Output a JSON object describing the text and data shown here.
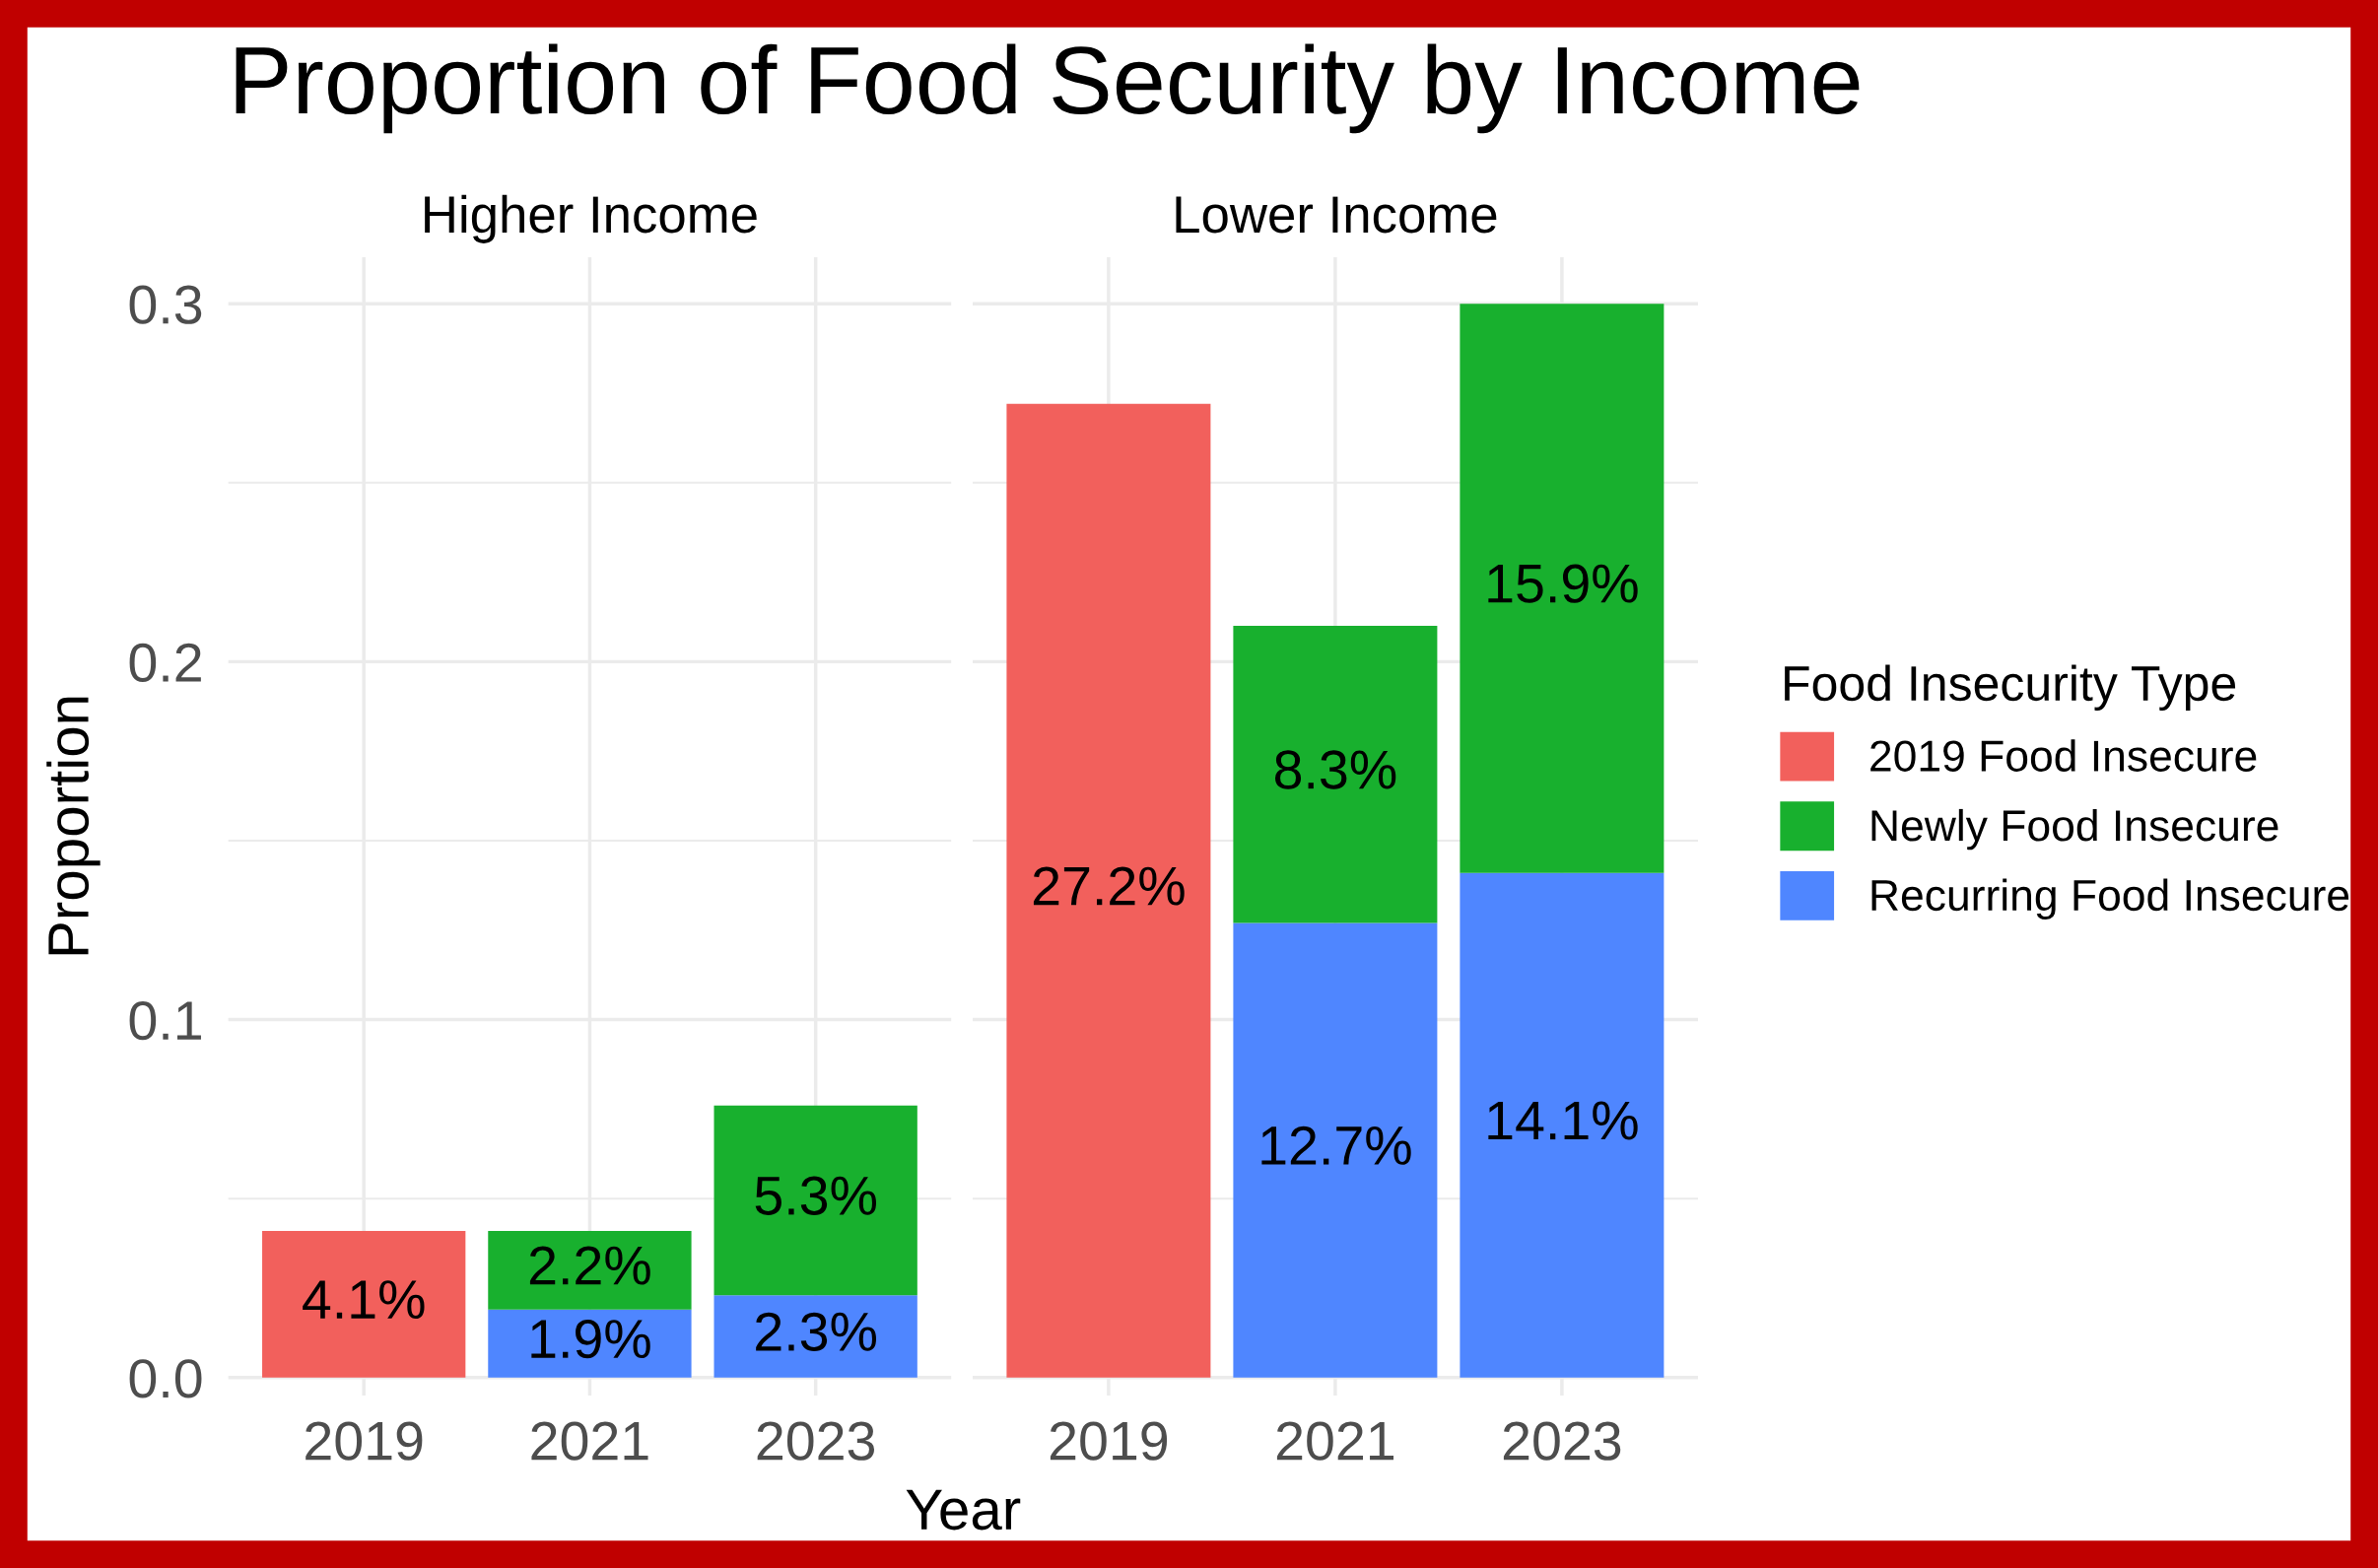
{
  "chart_data": [
    {
      "type": "bar",
      "title": "Proportion of Food Security by Income",
      "subtitle": "Higher Income",
      "xlabel": "Year",
      "ylabel": "Proportion",
      "categories": [
        "2019",
        "2021",
        "2023"
      ],
      "stacked": true,
      "ylim": [
        -0.005,
        0.313
      ],
      "yticks": [
        {
          "value": 0,
          "label": "0.0"
        },
        0.1,
        0.2,
        0.3
      ],
      "grid": true,
      "series": [
        {
          "color": "#4f86ff",
          "values": [
            null,
            0.019,
            0.023
          ],
          "value_labels": [
            null,
            "1.9%",
            "2.3%"
          ]
        },
        {
          "color": "#18b02e",
          "values": [
            null,
            0.022,
            0.053
          ],
          "value_labels": [
            null,
            "2.2%",
            "5.3%"
          ]
        },
        {
          "color": "#f2605c",
          "values": [
            0.041,
            null,
            null
          ],
          "value_labels": [
            "4.1%",
            null,
            null
          ]
        }
      ]
    },
    {
      "type": "bar",
      "subtitle": "Lower Income",
      "legend_title": "Food Insecurity Type",
      "legend": "right",
      "tick_labels": "x",
      "categories": [
        "2019",
        "2021",
        "2023"
      ],
      "stacked": true,
      "ylim": [
        -0.005,
        0.313
      ],
      "yticks": [
        {
          "value": 0,
          "label": null
        },
        {
          "value": 0.1,
          "label": null
        },
        {
          "value": 0.2,
          "label": null
        },
        {
          "value": 0.3,
          "label": null
        }
      ],
      "grid": true,
      "series": [
        {
          "name": "Recurring Food Insecure",
          "color": "#4f86ff",
          "values": [
            null,
            0.127,
            0.141
          ],
          "value_labels": [
            null,
            "12.7%",
            "14.1%"
          ]
        },
        {
          "name": "Newly Food Insecure",
          "color": "#18b02e",
          "values": [
            null,
            0.083,
            0.159
          ],
          "value_labels": [
            null,
            "8.3%",
            "15.9%"
          ]
        },
        {
          "name": "2019 Food Insecure",
          "color": "#f2605c",
          "values": [
            0.272,
            null,
            null
          ],
          "value_labels": [
            "27.2%",
            null,
            null
          ]
        }
      ]
    }
  ]
}
